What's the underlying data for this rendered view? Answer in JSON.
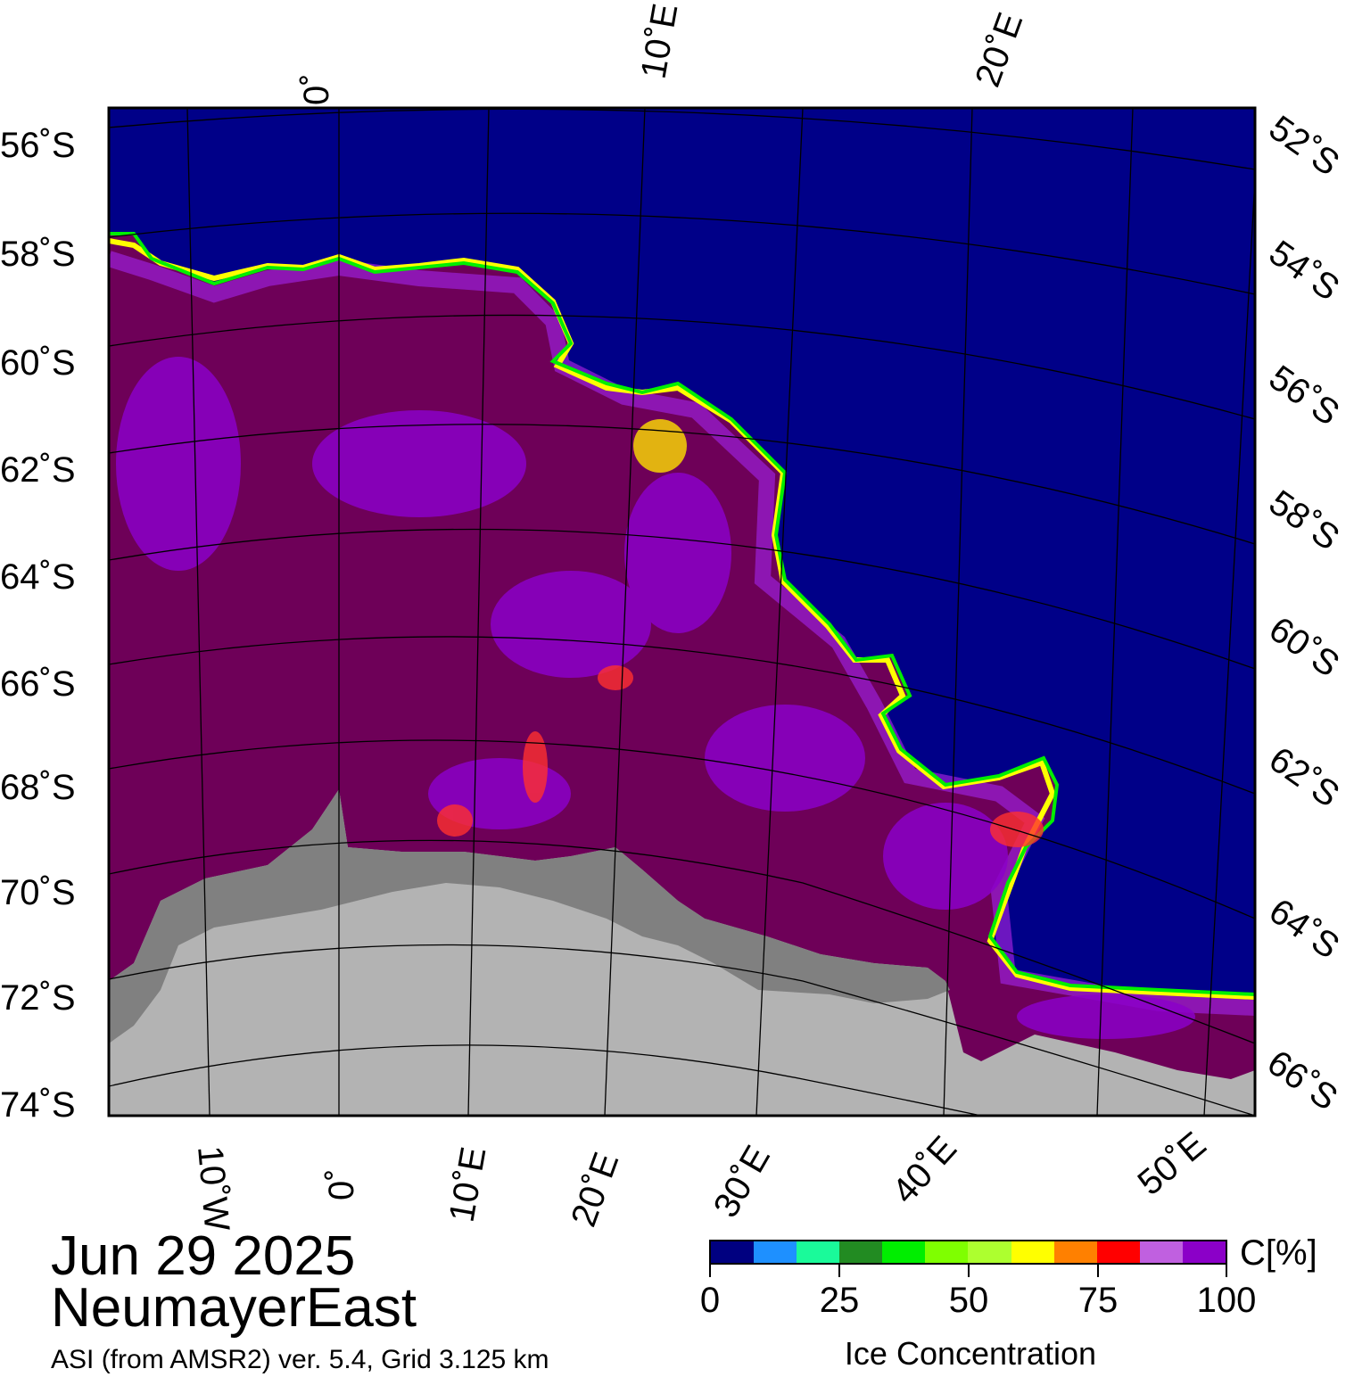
{
  "map": {
    "date": "Jun 29 2025",
    "region": "NeumayerEast",
    "source": "ASI (from AMSR2) ver. 5.4,  Grid 3.125 km",
    "colors": {
      "ocean": "#000088",
      "land_shelf": "#808080",
      "land": "#b3b3b3",
      "ice_high": "#6e0058",
      "ice_mid": "#8b00c8"
    },
    "top_lon_labels": [
      "0˚",
      "10˚E",
      "20˚E"
    ],
    "bottom_lon_labels": [
      "10˚W",
      "0˚",
      "10˚E",
      "20˚E",
      "30˚E",
      "40˚E",
      "50˚E"
    ],
    "left_lat_labels": [
      "56˚S",
      "58˚S",
      "60˚S",
      "62˚S",
      "64˚S",
      "66˚S",
      "68˚S",
      "70˚S",
      "72˚S",
      "74˚S"
    ],
    "right_lat_labels": [
      "52˚S",
      "54˚S",
      "56˚S",
      "58˚S",
      "60˚S",
      "62˚S",
      "64˚S",
      "66˚S"
    ]
  },
  "colorbar": {
    "unit": "C[%]",
    "title": "Ice Concentration",
    "ticks": [
      "0",
      "25",
      "50",
      "75",
      "100"
    ],
    "colors": [
      "#000080",
      "#1e90ff",
      "#1afa9a",
      "#228b22",
      "#00ee00",
      "#7fff00",
      "#adff2f",
      "#ffff00",
      "#ff8000",
      "#ff0000",
      "#c060e0",
      "#8b00c8"
    ]
  }
}
